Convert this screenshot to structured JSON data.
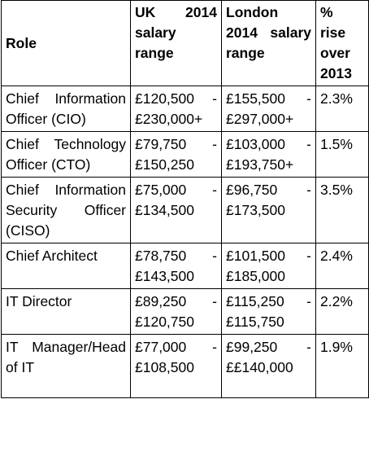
{
  "table": {
    "headers": {
      "role": "Role",
      "uk_line1": "UK 2014",
      "uk_line2": "salary",
      "uk_line3": "range",
      "london_line1": "London",
      "london_line2": "2014 salary",
      "london_line3": "range",
      "rise_line1": "%",
      "rise_line2": "rise",
      "rise_line3": "over",
      "rise_line4": "2013"
    },
    "rows": [
      {
        "role": "Chief Information Officer (CIO)",
        "uk_min": "£120,500 -",
        "uk_max": "£230,000+",
        "london_min": "£155,500 -",
        "london_max": "£297,000+",
        "rise": "2.3%"
      },
      {
        "role": "Chief Technology Officer (CTO)",
        "uk_min": "£79,750 -",
        "uk_max": "£150,250",
        "london_min": "£103,000 -",
        "london_max": "£193,750+",
        "rise": "1.5%"
      },
      {
        "role": "Chief Information Security Officer (CISO)",
        "uk_min": "£75,000 -",
        "uk_max": "£134,500",
        "london_min": "£96,750 -",
        "london_max": "£173,500",
        "rise": "3.5%"
      },
      {
        "role": "Chief Architect",
        "uk_min": "£78,750 -",
        "uk_max": "£143,500",
        "london_min": "£101,500 -",
        "london_max": "£185,000",
        "rise": "2.4%"
      },
      {
        "role": "IT Director",
        "uk_min": "£89,250 -",
        "uk_max": "£120,750",
        "london_min": "£115,250 -",
        "london_max": "£115,750",
        "rise": "2.2%"
      },
      {
        "role": "IT Manager/Head of IT",
        "uk_min": "£77,000 -",
        "uk_max": "£108,500",
        "london_min": "£99,250 -",
        "london_max": "££140,000",
        "rise": "1.9%"
      }
    ]
  }
}
